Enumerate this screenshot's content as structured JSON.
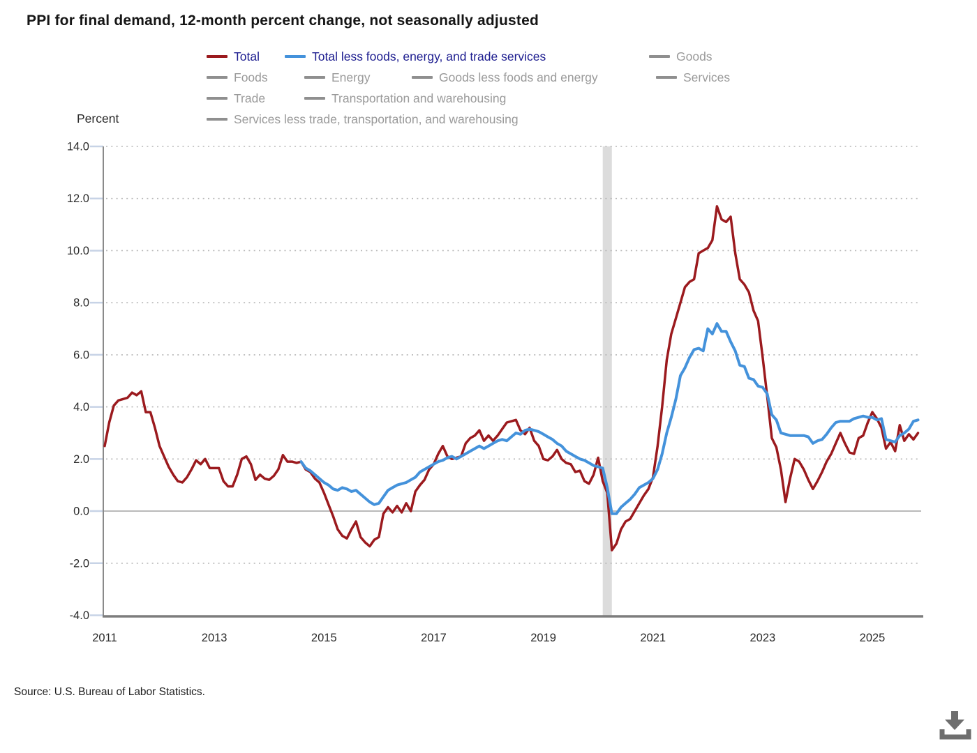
{
  "page": {
    "source": "Source: U.S. Bureau of Labor Statistics."
  },
  "colors": {
    "total": "#9b1a1e",
    "core": "#4492db",
    "inactive_swatch": "#8f8f8f",
    "inactive_text": "#9a9a9a",
    "legend_active_text": "#1c1c8f",
    "grid_dotted": "#b5b5b5",
    "zero_line": "#b9b9b9",
    "axis_left": "#8a8a8a",
    "axis_bottom": "#7d7d7d",
    "tick_mark": "#c7d3e6",
    "tick_text": "#2b2b2b",
    "recession_band": "#dcdcdc",
    "download_icon": "#6e6e6e"
  },
  "legend": {
    "rows": [
      [
        {
          "label": "Total",
          "series": "total",
          "active": true
        },
        {
          "label": "Total less foods, energy, and trade services",
          "series": "core",
          "active": true
        },
        {
          "label": "Goods",
          "series": null,
          "active": false
        }
      ],
      [
        {
          "label": "Foods",
          "series": null,
          "active": false
        },
        {
          "label": "Energy",
          "series": null,
          "active": false
        },
        {
          "label": "Goods less foods and energy",
          "series": null,
          "active": false
        },
        {
          "label": "Services",
          "series": null,
          "active": false
        }
      ],
      [
        {
          "label": "Trade",
          "series": null,
          "active": false
        },
        {
          "label": "Transportation and warehousing",
          "series": null,
          "active": false
        }
      ],
      [
        {
          "label": "Services less trade, transportation, and warehousing",
          "series": null,
          "active": false
        }
      ]
    ]
  },
  "chart_data": {
    "type": "line",
    "title": "PPI for final demand, 12-month percent change, not seasonally adjusted",
    "ylabel": "Percent",
    "xlabel": "",
    "ylim": [
      -4.0,
      14.0
    ],
    "grid": "dotted-horizontal",
    "x_start": "2011-01",
    "x_end": "2025-11",
    "x_ticks": [
      "2011",
      "2013",
      "2015",
      "2017",
      "2019",
      "2021",
      "2023",
      "2025"
    ],
    "y_ticks": [
      "14.0",
      "12.0",
      "10.0",
      "8.0",
      "6.0",
      "4.0",
      "2.0",
      "0.0",
      "-2.0",
      "-4.0"
    ],
    "recession_band": {
      "name": "covid-recession",
      "from_month_offset": 109,
      "to_month_offset": 111
    },
    "series": [
      {
        "name": "Total",
        "color_key": "total",
        "start": "2011-01",
        "start_month_offset": 0,
        "values": [
          2.5,
          3.4,
          4.05,
          4.25,
          4.3,
          4.35,
          4.55,
          4.45,
          4.6,
          3.8,
          3.8,
          3.2,
          2.5,
          2.1,
          1.7,
          1.4,
          1.15,
          1.1,
          1.3,
          1.6,
          1.95,
          1.8,
          2.0,
          1.65,
          1.65,
          1.65,
          1.15,
          0.95,
          0.95,
          1.4,
          2.0,
          2.1,
          1.8,
          1.2,
          1.4,
          1.25,
          1.2,
          1.35,
          1.6,
          2.15,
          1.9,
          1.9,
          1.85,
          1.9,
          1.6,
          1.5,
          1.25,
          1.1,
          0.7,
          0.25,
          -0.2,
          -0.7,
          -0.95,
          -1.05,
          -0.7,
          -0.4,
          -1.0,
          -1.2,
          -1.35,
          -1.1,
          -1.0,
          -0.1,
          0.15,
          -0.05,
          0.2,
          -0.05,
          0.3,
          0.0,
          0.75,
          1.0,
          1.2,
          1.6,
          1.8,
          2.2,
          2.5,
          2.1,
          2.0,
          2.05,
          2.1,
          2.6,
          2.8,
          2.9,
          3.1,
          2.7,
          2.9,
          2.7,
          2.9,
          3.15,
          3.4,
          3.45,
          3.5,
          3.1,
          2.95,
          3.2,
          2.7,
          2.5,
          2.0,
          1.95,
          2.1,
          2.35,
          2.0,
          1.85,
          1.8,
          1.5,
          1.55,
          1.15,
          1.05,
          1.4,
          2.05,
          1.15,
          0.7,
          -1.5,
          -1.25,
          -0.7,
          -0.4,
          -0.3,
          0.0,
          0.3,
          0.6,
          0.85,
          1.3,
          2.5,
          4.0,
          5.8,
          6.8,
          7.4,
          8.0,
          8.6,
          8.8,
          8.9,
          9.9,
          10.0,
          10.1,
          10.4,
          11.7,
          11.2,
          11.1,
          11.3,
          9.9,
          8.9,
          8.7,
          8.4,
          7.7,
          7.3,
          5.9,
          4.4,
          2.8,
          2.45,
          1.6,
          0.35,
          1.25,
          2.0,
          1.9,
          1.6,
          1.2,
          0.85,
          1.15,
          1.5,
          1.9,
          2.2,
          2.6,
          3.0,
          2.6,
          2.25,
          2.2,
          2.8,
          2.9,
          3.4,
          3.8,
          3.55,
          3.2,
          2.4,
          2.65,
          2.3,
          3.3,
          2.7,
          2.95,
          2.75,
          3.0
        ]
      },
      {
        "name": "Total less foods, energy, and trade services",
        "color_key": "core",
        "start": "2014-08",
        "start_month_offset": 43,
        "values": [
          1.9,
          1.65,
          1.55,
          1.4,
          1.25,
          1.1,
          1.0,
          0.85,
          0.8,
          0.9,
          0.85,
          0.75,
          0.8,
          0.65,
          0.5,
          0.35,
          0.25,
          0.3,
          0.55,
          0.8,
          0.9,
          1.0,
          1.05,
          1.1,
          1.2,
          1.3,
          1.5,
          1.6,
          1.7,
          1.8,
          1.9,
          1.95,
          2.05,
          2.1,
          2.0,
          2.1,
          2.2,
          2.3,
          2.4,
          2.5,
          2.4,
          2.5,
          2.6,
          2.7,
          2.75,
          2.7,
          2.85,
          3.0,
          2.95,
          3.1,
          3.15,
          3.1,
          3.05,
          2.95,
          2.85,
          2.75,
          2.6,
          2.5,
          2.3,
          2.2,
          2.1,
          2.0,
          1.95,
          1.85,
          1.75,
          1.7,
          1.65,
          0.9,
          -0.1,
          -0.1,
          0.15,
          0.3,
          0.45,
          0.65,
          0.9,
          1.0,
          1.1,
          1.25,
          1.6,
          2.2,
          3.0,
          3.6,
          4.3,
          5.2,
          5.5,
          5.9,
          6.2,
          6.25,
          6.15,
          7.0,
          6.8,
          7.2,
          6.9,
          6.9,
          6.5,
          6.15,
          5.6,
          5.55,
          5.1,
          5.05,
          4.8,
          4.75,
          4.5,
          3.7,
          3.5,
          3.0,
          2.95,
          2.9,
          2.9,
          2.9,
          2.9,
          2.85,
          2.6,
          2.7,
          2.75,
          2.95,
          3.2,
          3.4,
          3.45,
          3.45,
          3.45,
          3.55,
          3.6,
          3.65,
          3.6,
          3.6,
          3.5,
          3.55,
          2.75,
          2.7,
          2.65,
          2.9,
          3.0,
          3.15,
          3.45,
          3.5
        ]
      }
    ]
  }
}
